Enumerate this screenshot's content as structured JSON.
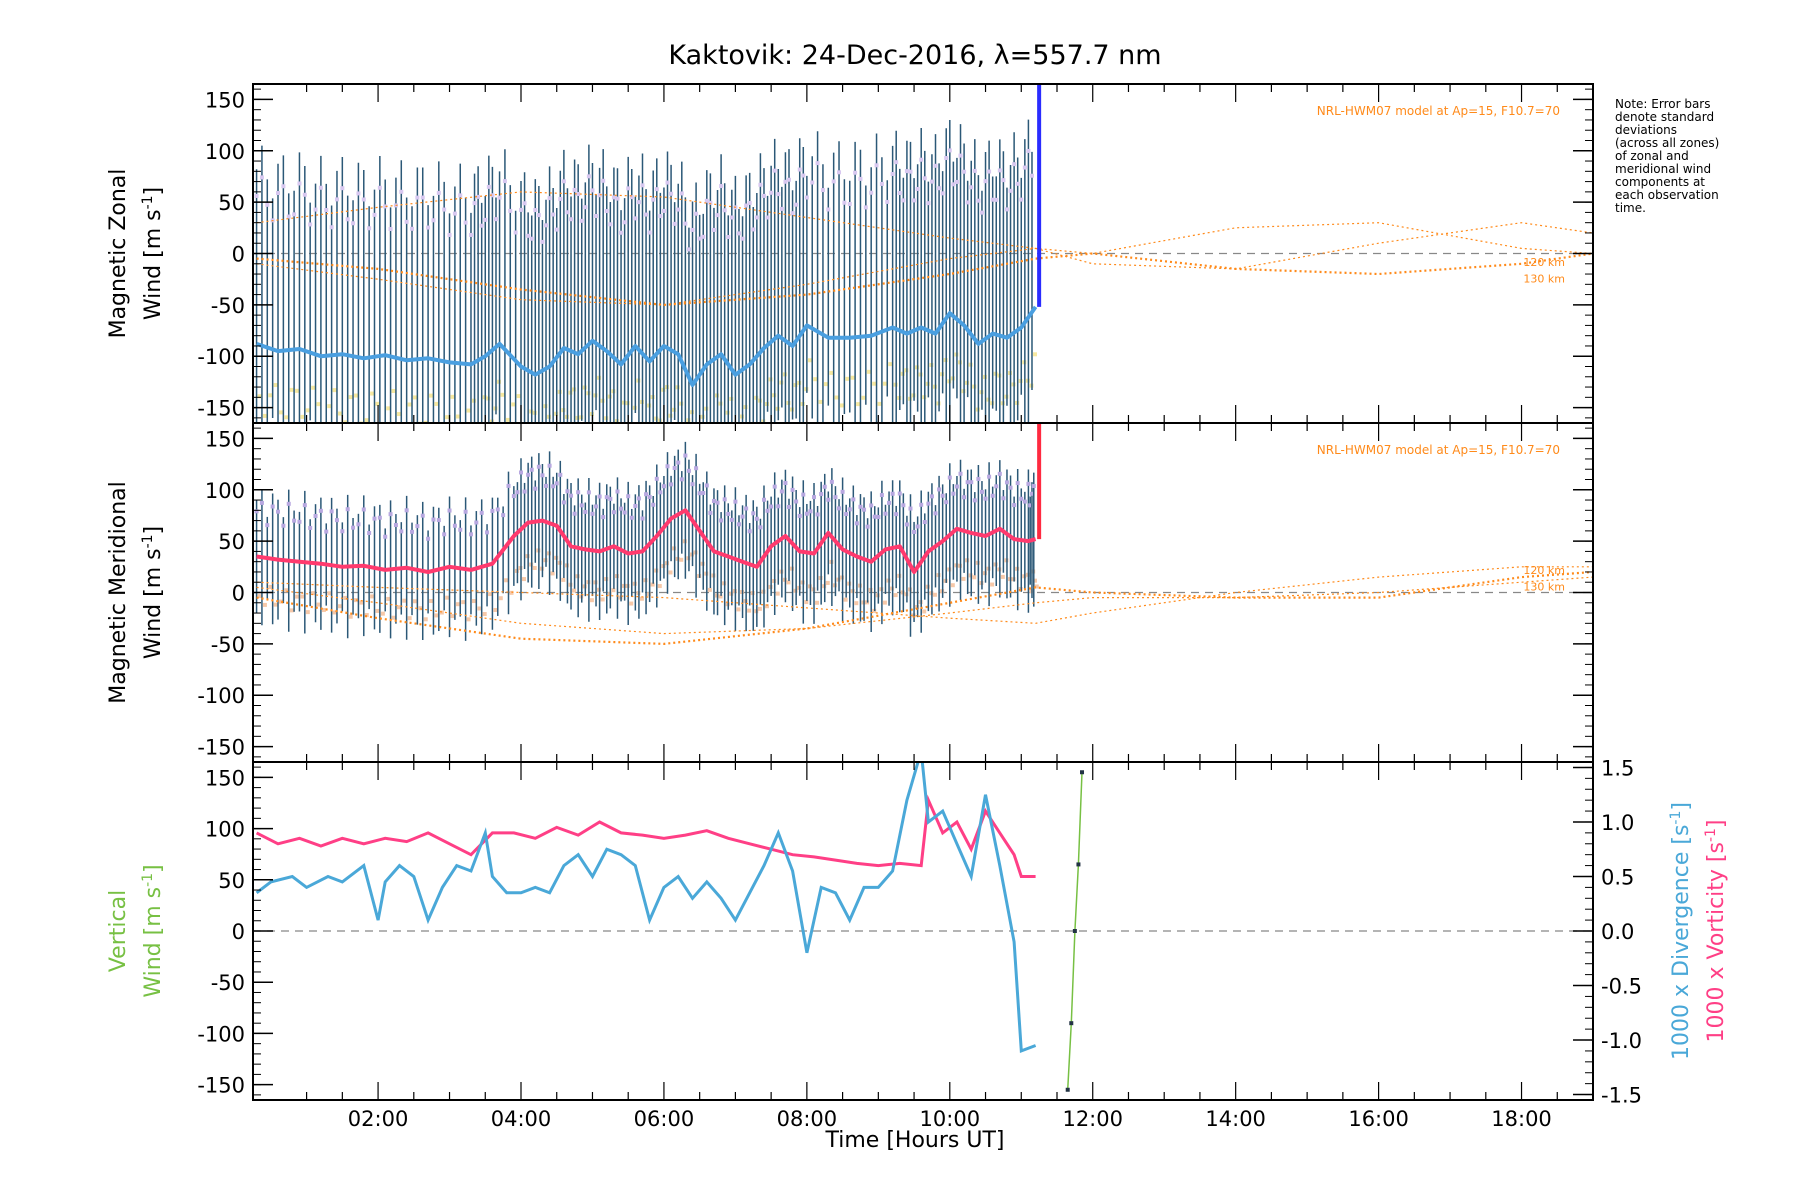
{
  "title": "Kaktovik: 24-Dec-2016, λ=557.7 nm",
  "note": [
    "Note: Error bars",
    "denote standard",
    "deviations",
    "(across all zones)",
    "of zonal and",
    "meridional wind",
    "components at",
    "each observation",
    "time."
  ],
  "xlabel": "Time [Hours UT]",
  "x_tick_labels": [
    "02:00",
    "04:00",
    "06:00",
    "08:00",
    "10:00",
    "12:00",
    "14:00",
    "16:00",
    "18:00"
  ],
  "colors": {
    "zonal_line": "#4a9fe0",
    "zonal_dark": "#1a3fd0",
    "zonal_blue_bar": "#2a2cff",
    "meridional_line": "#ff3a6e",
    "meridional_red_bar": "#ff2a40",
    "model": "#ff8a1a",
    "error_bar": "#2b5877",
    "divergence": "#4aa8d8",
    "vorticity": "#ff3f86",
    "vertical": "#77c043",
    "zero_line": "#888888"
  },
  "panels": {
    "zonal": {
      "ylabel_line1": "Magnetic Zonal",
      "ylabel_line2": "Wind [m s",
      "ylabel_sup": "-1",
      "ylabel_close": "]",
      "model_label": "NRL-HWM07 model at Ap=15, F10.7=70",
      "alt_labels": [
        "120 km",
        "130 km"
      ]
    },
    "meridional": {
      "ylabel_line1": "Magnetic Meridional",
      "ylabel_line2": "Wind [m s",
      "ylabel_sup": "-1",
      "ylabel_close": "]",
      "model_label": "NRL-HWM07 model at Ap=15, F10.7=70",
      "alt_labels": [
        "120 km",
        "130 km"
      ]
    },
    "vertical": {
      "ylabel_line1": "Vertical",
      "ylabel_line2": "Wind [m s",
      "ylabel_sup": "-1",
      "ylabel_close": "]",
      "right_div_label": "1000 x Divergence [s",
      "right_vort_label": "1000 x Vorticity [s",
      "right_sup": "-1",
      "right_close": "]"
    }
  },
  "chart_data": [
    {
      "type": "line",
      "panel": "Magnetic Zonal Wind",
      "x_unit": "hours UT",
      "xlim": [
        0.25,
        19.0
      ],
      "ylim": [
        -165,
        165
      ],
      "y_ticks": [
        -150,
        -100,
        -50,
        0,
        50,
        100,
        150
      ],
      "grid": false,
      "series": [
        {
          "x": [
            0.3,
            0.6,
            0.9,
            1.2,
            1.5,
            1.8,
            2.1,
            2.4,
            2.7,
            3.0,
            3.3,
            3.5,
            3.7,
            4.0,
            4.2,
            4.4,
            4.6,
            4.8,
            5.0,
            5.2,
            5.4,
            5.6,
            5.8,
            6.0,
            6.2,
            6.4,
            6.6,
            6.8,
            7.0,
            7.2,
            7.4,
            7.6,
            7.8,
            8.0,
            8.3,
            8.6,
            8.9,
            9.2,
            9.4,
            9.6,
            9.8,
            10.0,
            10.2,
            10.4,
            10.6,
            10.8,
            11.0,
            11.2
          ],
          "y": [
            -88,
            -95,
            -93,
            -100,
            -98,
            -102,
            -99,
            -104,
            -102,
            -106,
            -108,
            -100,
            -88,
            -110,
            -118,
            -110,
            -92,
            -98,
            -85,
            -95,
            -108,
            -90,
            -105,
            -90,
            -98,
            -128,
            -108,
            -98,
            -118,
            -108,
            -92,
            -80,
            -90,
            -70,
            -82,
            -82,
            -80,
            -72,
            -78,
            -72,
            -78,
            -58,
            -70,
            -88,
            -78,
            -82,
            -72,
            -52
          ]
        }
      ],
      "vertical_bar_x": 11.25,
      "model_series": [
        {
          "x": [
            0.3,
            2.0,
            4.0,
            6.0,
            8.0,
            10.0,
            11.2,
            12.0,
            14.0,
            16.0,
            18.0,
            19.0
          ],
          "y": [
            -5,
            -15,
            -35,
            -50,
            -40,
            -20,
            -5,
            0,
            -15,
            -20,
            -10,
            0
          ]
        },
        {
          "x": [
            0.3,
            2.0,
            4.0,
            6.0,
            8.0,
            10.0,
            11.2,
            12.0,
            14.0,
            16.0,
            18.0,
            19.0
          ],
          "y": [
            30,
            45,
            60,
            55,
            35,
            15,
            5,
            -10,
            -15,
            10,
            30,
            20
          ]
        },
        {
          "x": [
            0.3,
            2.0,
            4.0,
            6.0,
            8.0,
            10.0,
            11.2,
            12.0,
            14.0,
            16.0,
            18.0,
            19.0
          ],
          "y": [
            -10,
            -25,
            -45,
            -50,
            -30,
            -5,
            5,
            0,
            25,
            30,
            5,
            0
          ]
        }
      ]
    },
    {
      "type": "line",
      "panel": "Magnetic Meridional Wind",
      "x_unit": "hours UT",
      "xlim": [
        0.25,
        19.0
      ],
      "ylim": [
        -165,
        165
      ],
      "y_ticks": [
        -150,
        -100,
        -50,
        0,
        50,
        100,
        150
      ],
      "grid": false,
      "series": [
        {
          "x": [
            0.3,
            0.6,
            0.9,
            1.2,
            1.5,
            1.8,
            2.1,
            2.4,
            2.7,
            3.0,
            3.3,
            3.6,
            3.9,
            4.1,
            4.3,
            4.5,
            4.7,
            4.9,
            5.1,
            5.3,
            5.5,
            5.7,
            5.9,
            6.1,
            6.3,
            6.5,
            6.7,
            6.9,
            7.1,
            7.3,
            7.5,
            7.7,
            7.9,
            8.1,
            8.3,
            8.5,
            8.7,
            8.9,
            9.1,
            9.3,
            9.5,
            9.7,
            9.9,
            10.1,
            10.3,
            10.5,
            10.7,
            10.9,
            11.1,
            11.2
          ],
          "y": [
            35,
            32,
            30,
            28,
            25,
            26,
            22,
            24,
            20,
            25,
            22,
            28,
            55,
            68,
            70,
            65,
            45,
            42,
            40,
            45,
            38,
            40,
            55,
            72,
            80,
            60,
            40,
            35,
            30,
            25,
            45,
            55,
            40,
            38,
            58,
            42,
            35,
            30,
            42,
            45,
            20,
            40,
            50,
            62,
            58,
            55,
            62,
            52,
            50,
            52
          ]
        }
      ],
      "vertical_bar_x": 11.25,
      "model_series": [
        {
          "x": [
            0.3,
            2.0,
            4.0,
            6.0,
            8.0,
            10.0,
            11.2,
            12.0,
            14.0,
            16.0,
            18.0,
            19.0
          ],
          "y": [
            -5,
            -25,
            -45,
            -50,
            -35,
            -10,
            5,
            0,
            -5,
            -5,
            15,
            20
          ]
        },
        {
          "x": [
            0.3,
            2.0,
            4.0,
            6.0,
            8.0,
            10.0,
            11.2,
            12.0,
            14.0,
            16.0,
            18.0,
            19.0
          ],
          "y": [
            5,
            -10,
            -30,
            -40,
            -35,
            -20,
            -10,
            -5,
            -5,
            0,
            10,
            15
          ]
        },
        {
          "x": [
            0.3,
            2.0,
            4.0,
            6.0,
            8.0,
            10.0,
            11.2,
            12.0,
            14.0,
            16.0,
            18.0,
            19.0
          ],
          "y": [
            10,
            5,
            0,
            -5,
            -15,
            -25,
            -30,
            -20,
            0,
            15,
            25,
            25
          ]
        }
      ]
    },
    {
      "type": "line",
      "panel": "Vertical Wind / Divergence / Vorticity",
      "x_unit": "hours UT",
      "xlim": [
        0.25,
        19.0
      ],
      "ylim": [
        -165,
        165
      ],
      "y_ticks": [
        -150,
        -100,
        -50,
        0,
        50,
        100,
        150
      ],
      "y2lim": [
        -1.55,
        1.55
      ],
      "y2_ticks": [
        -1.5,
        -1.0,
        -0.5,
        0.0,
        0.5,
        1.0,
        1.5
      ],
      "grid": false,
      "series": [
        {
          "name": "1000 x Divergence",
          "axis": "right",
          "x": [
            0.3,
            0.5,
            0.8,
            1.0,
            1.3,
            1.5,
            1.8,
            2.0,
            2.1,
            2.3,
            2.5,
            2.7,
            2.9,
            3.1,
            3.3,
            3.5,
            3.6,
            3.8,
            4.0,
            4.2,
            4.4,
            4.6,
            4.8,
            5.0,
            5.2,
            5.4,
            5.6,
            5.8,
            6.0,
            6.2,
            6.4,
            6.6,
            6.8,
            7.0,
            7.2,
            7.4,
            7.6,
            7.8,
            8.0,
            8.2,
            8.4,
            8.6,
            8.8,
            9.0,
            9.2,
            9.4,
            9.6,
            9.7,
            9.9,
            10.1,
            10.3,
            10.5,
            10.7,
            10.9,
            11.0,
            11.2
          ],
          "y": [
            0.35,
            0.45,
            0.5,
            0.4,
            0.5,
            0.45,
            0.6,
            0.1,
            0.45,
            0.6,
            0.5,
            0.1,
            0.4,
            0.6,
            0.55,
            0.9,
            0.5,
            0.35,
            0.35,
            0.4,
            0.35,
            0.6,
            0.7,
            0.5,
            0.75,
            0.7,
            0.6,
            0.1,
            0.4,
            0.5,
            0.3,
            0.45,
            0.3,
            0.1,
            0.35,
            0.6,
            0.9,
            0.55,
            -0.2,
            0.4,
            0.35,
            0.1,
            0.4,
            0.4,
            0.55,
            1.2,
            1.65,
            1.0,
            1.1,
            0.8,
            0.5,
            1.25,
            0.6,
            -0.1,
            -1.1,
            -1.05
          ]
        },
        {
          "name": "1000 x Vorticity",
          "axis": "right",
          "x": [
            0.3,
            0.6,
            0.9,
            1.2,
            1.5,
            1.8,
            2.1,
            2.4,
            2.7,
            3.0,
            3.3,
            3.6,
            3.9,
            4.2,
            4.5,
            4.8,
            5.1,
            5.4,
            5.7,
            6.0,
            6.3,
            6.6,
            6.9,
            7.2,
            7.5,
            7.8,
            8.1,
            8.4,
            8.7,
            9.0,
            9.3,
            9.6,
            9.7,
            9.9,
            10.1,
            10.3,
            10.5,
            10.7,
            10.9,
            11.0,
            11.2
          ],
          "y": [
            0.9,
            0.8,
            0.85,
            0.78,
            0.85,
            0.8,
            0.85,
            0.82,
            0.9,
            0.8,
            0.7,
            0.9,
            0.9,
            0.85,
            0.95,
            0.88,
            1.0,
            0.9,
            0.88,
            0.85,
            0.88,
            0.92,
            0.85,
            0.8,
            0.75,
            0.7,
            0.68,
            0.65,
            0.62,
            0.6,
            0.62,
            0.6,
            1.2,
            0.9,
            1.0,
            0.75,
            1.1,
            0.9,
            0.7,
            0.5,
            0.5
          ]
        },
        {
          "name": "Vertical Wind",
          "axis": "left",
          "x": [
            11.65,
            11.7,
            11.75,
            11.8,
            11.85
          ],
          "y": [
            -155,
            -90,
            0,
            65,
            155
          ]
        }
      ]
    }
  ]
}
